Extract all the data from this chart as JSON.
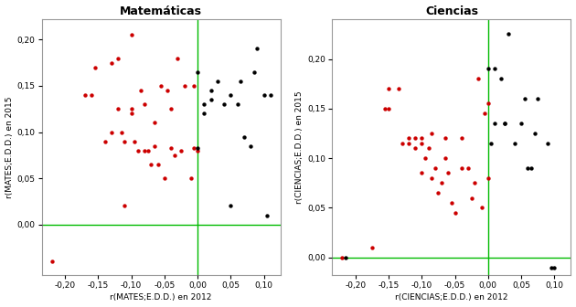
{
  "math_red_x": [
    -0.22,
    -0.17,
    -0.16,
    -0.155,
    -0.14,
    -0.13,
    -0.13,
    -0.12,
    -0.12,
    -0.115,
    -0.11,
    -0.11,
    -0.1,
    -0.1,
    -0.1,
    -0.095,
    -0.09,
    -0.085,
    -0.08,
    -0.08,
    -0.075,
    -0.07,
    -0.065,
    -0.065,
    -0.06,
    -0.055,
    -0.05,
    -0.045,
    -0.04,
    -0.04,
    -0.035,
    -0.03,
    -0.025,
    -0.02,
    -0.01,
    -0.005,
    -0.005,
    0.0
  ],
  "math_red_y": [
    -0.04,
    0.14,
    0.14,
    0.17,
    0.09,
    0.1,
    0.175,
    0.18,
    0.125,
    0.1,
    0.02,
    0.09,
    0.12,
    0.125,
    0.205,
    0.09,
    0.08,
    0.145,
    0.08,
    0.13,
    0.08,
    0.065,
    0.085,
    0.11,
    0.065,
    0.15,
    0.05,
    0.145,
    0.083,
    0.125,
    0.075,
    0.18,
    0.08,
    0.15,
    0.05,
    0.083,
    0.15,
    0.08
  ],
  "math_black_x": [
    0.0,
    0.0,
    0.01,
    0.01,
    0.02,
    0.02,
    0.03,
    0.04,
    0.05,
    0.05,
    0.06,
    0.065,
    0.07,
    0.08,
    0.085,
    0.09,
    0.1,
    0.105,
    0.11
  ],
  "math_black_y": [
    0.165,
    0.083,
    0.13,
    0.12,
    0.145,
    0.135,
    0.155,
    0.13,
    0.02,
    0.14,
    0.13,
    0.155,
    0.095,
    0.085,
    0.165,
    0.19,
    0.14,
    0.01,
    0.14
  ],
  "sci_red_x": [
    -0.22,
    -0.175,
    -0.155,
    -0.15,
    -0.15,
    -0.135,
    -0.13,
    -0.12,
    -0.12,
    -0.11,
    -0.11,
    -0.1,
    -0.1,
    -0.1,
    -0.095,
    -0.09,
    -0.085,
    -0.085,
    -0.08,
    -0.075,
    -0.07,
    -0.065,
    -0.065,
    -0.06,
    -0.055,
    -0.05,
    -0.04,
    -0.04,
    -0.03,
    -0.025,
    -0.02,
    -0.015,
    -0.01,
    -0.005,
    0.0,
    0.0
  ],
  "sci_red_y": [
    0.0,
    0.01,
    0.15,
    0.15,
    0.17,
    0.17,
    0.115,
    0.115,
    0.12,
    0.11,
    0.12,
    0.085,
    0.115,
    0.12,
    0.1,
    0.11,
    0.08,
    0.125,
    0.09,
    0.065,
    0.075,
    0.1,
    0.12,
    0.085,
    0.055,
    0.045,
    0.09,
    0.12,
    0.09,
    0.06,
    0.075,
    0.18,
    0.05,
    0.145,
    0.08,
    0.155
  ],
  "sci_black_x": [
    -0.215,
    0.0,
    0.005,
    0.01,
    0.01,
    0.02,
    0.025,
    0.025,
    0.03,
    0.04,
    0.05,
    0.055,
    0.06,
    0.065,
    0.07,
    0.075,
    0.09,
    0.095,
    0.1
  ],
  "sci_black_y": [
    0.0,
    0.19,
    0.115,
    0.135,
    0.19,
    0.18,
    0.135,
    0.135,
    0.225,
    0.115,
    0.135,
    0.16,
    0.09,
    0.09,
    0.125,
    0.16,
    0.115,
    -0.01,
    -0.01
  ],
  "math_xlabel": "r(MATES;E.D.D.) en 2012",
  "math_ylabel": "r(MATES;E.D.D.) en 2015",
  "math_title": "Matemáticas",
  "sci_xlabel": "r(CIENCIAS;E.D.D.) en 2012",
  "sci_ylabel": "r(CIENCIAS;E.D.D.) en 2015",
  "sci_title": "Ciencias",
  "xlim": [
    -0.235,
    0.125
  ],
  "math_ylim": [
    -0.055,
    0.222
  ],
  "sci_ylim": [
    -0.018,
    0.24
  ],
  "xticks": [
    -0.2,
    -0.15,
    -0.1,
    -0.05,
    0.0,
    0.05,
    0.1
  ],
  "yticks_math": [
    0.0,
    0.05,
    0.1,
    0.15,
    0.2
  ],
  "yticks_sci": [
    0.0,
    0.05,
    0.1,
    0.15,
    0.2
  ],
  "vline_x": 0.0,
  "hline_y": 0.0,
  "line_color": "#00BB00",
  "red_color": "#CC0000",
  "black_color": "#000000",
  "bg_color": "#FFFFFF",
  "dot_size": 10,
  "figwidth": 6.3,
  "figheight": 3.36,
  "dpi": 100
}
